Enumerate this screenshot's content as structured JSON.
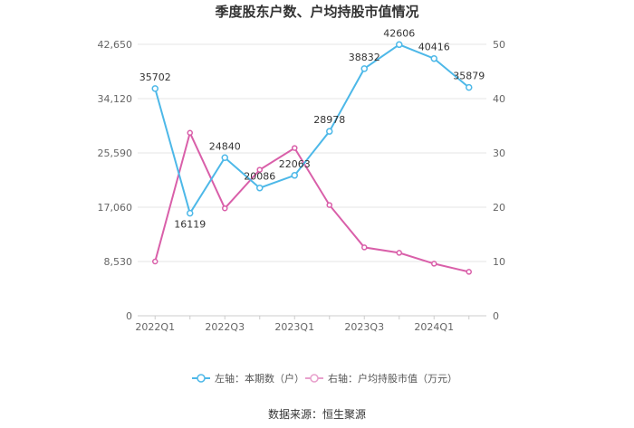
{
  "chart_data": {
    "type": "line",
    "title": "季度股东户数、户均持股市值情况",
    "categories": [
      "2022Q1",
      "2022Q2",
      "2022Q3",
      "2022Q4",
      "2023Q1",
      "2023Q2",
      "2023Q3",
      "2023Q4",
      "2024Q1",
      "2024Q2"
    ],
    "x_tick_labels": [
      "2022Q1",
      "2022Q3",
      "2023Q1",
      "2023Q3",
      "2024Q1"
    ],
    "left_axis": {
      "ticks": [
        0,
        8530,
        17060,
        25590,
        34120,
        42650
      ],
      "tick_labels": [
        "0",
        "8,530",
        "17,060",
        "25,590",
        "34,120",
        "42,650"
      ],
      "ylim": [
        0,
        42650
      ]
    },
    "right_axis": {
      "ticks": [
        0,
        10,
        20,
        30,
        40,
        50
      ],
      "tick_labels": [
        "0",
        "10",
        "20",
        "30",
        "40",
        "50"
      ],
      "ylim": [
        0,
        50
      ]
    },
    "series": [
      {
        "name": "左轴：本期数（户）",
        "axis": "left",
        "color": "#4db8e8",
        "values": [
          35702,
          16119,
          24840,
          20086,
          22063,
          28978,
          38832,
          42606,
          40416,
          35879
        ],
        "labels": [
          "35702",
          "16119",
          "24840",
          "20086",
          "22063",
          "28978",
          "38832",
          "42606",
          "40416",
          "35879"
        ]
      },
      {
        "name": "右轴：户均持股市值（万元）",
        "axis": "right",
        "color": "#d95fa9",
        "values": [
          10.0,
          33.7,
          19.8,
          26.9,
          30.9,
          20.4,
          12.6,
          11.6,
          9.6,
          8.1
        ]
      }
    ],
    "grid": true,
    "legend": "bottom-center"
  },
  "source_text": "数据来源：恒生聚源"
}
